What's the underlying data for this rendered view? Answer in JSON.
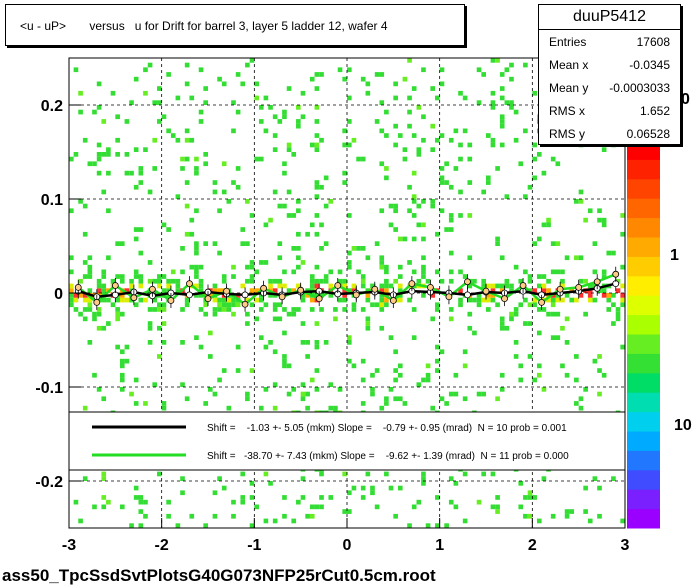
{
  "title": "<u - uP>       versus   u for Drift for barrel 3, layer 5 ladder 12, wafer 4",
  "stats": {
    "name": "duuP5412",
    "rows": [
      {
        "label": "Entries",
        "value": "17608"
      },
      {
        "label": "Mean x",
        "value": "-0.0345"
      },
      {
        "label": "Mean y",
        "value": "-0.0003033"
      },
      {
        "label": "RMS x",
        "value": "1.652"
      },
      {
        "label": "RMS y",
        "value": "0.06528"
      }
    ]
  },
  "legend": {
    "entries": [
      {
        "text": "Shift =    -1.03 +- 5.05 (mkm) Slope =    -0.79 +- 0.95 (mrad)  N = 10 prob = 0.001",
        "color": "#000000"
      },
      {
        "text": "Shift =   -38.70 +- 7.43 (mkm) Slope =    -9.62 +- 1.39 (mrad)  N = 11 prob = 0.000",
        "color": "#22dd22"
      }
    ]
  },
  "footer": "ass50_TpcSsdSvtPlotsG40G073NFP25rCut0.5cm.root",
  "chart_data": {
    "type": "heatmap",
    "title": "<u - uP>       versus   u for Drift for barrel 3, layer 5 ladder 12, wafer 4",
    "xlim": [
      -3,
      3
    ],
    "ylim": [
      -0.25,
      0.25
    ],
    "xticks": [
      "-3",
      "-2",
      "-1",
      "0",
      "1",
      "2",
      "3"
    ],
    "yticks": [
      "-0.2",
      "-0.1",
      "0",
      "0.1",
      "0.2"
    ],
    "grid": true,
    "colorbar": {
      "scale": "log",
      "labels": [
        "1",
        "10"
      ],
      "partial_label": "0"
    },
    "series": [
      {
        "x": [
          -2.9,
          -2.7,
          -2.5,
          -2.3,
          -2.1,
          -1.9,
          -1.7,
          -1.5,
          -1.3,
          -1.1,
          -0.9,
          -0.7,
          -0.5,
          -0.3,
          -0.1,
          0.1,
          0.3,
          0.5,
          0.7,
          0.9,
          1.1,
          1.3,
          1.5,
          1.7,
          1.9,
          2.1,
          2.3,
          2.5,
          2.7,
          2.9
        ],
        "y": [
          0.002,
          -0.004,
          -0.002,
          0.001,
          -0.003,
          0.0,
          -0.002,
          0.001,
          -0.001,
          -0.002,
          0.0,
          -0.002,
          0.001,
          0.002,
          -0.001,
          0.0,
          0.001,
          -0.002,
          0.002,
          0.001,
          0.0,
          -0.002,
          0.001,
          0.0,
          0.002,
          -0.002,
          0.0,
          0.002,
          0.005,
          0.01
        ],
        "color": "#000000"
      },
      {
        "x": [
          -2.9,
          -2.7,
          -2.5,
          -2.3,
          -2.1,
          -1.9,
          -1.7,
          -1.5,
          -1.3,
          -1.1,
          -0.9,
          -0.7,
          -0.5,
          -0.3,
          -0.1,
          0.1,
          0.3,
          0.5,
          0.7,
          0.9,
          1.1,
          1.3,
          1.5,
          1.7,
          1.9,
          2.1,
          2.3,
          2.5,
          2.7,
          2.9
        ],
        "y": [
          0.006,
          -0.01,
          0.008,
          -0.005,
          0.004,
          -0.008,
          0.01,
          -0.006,
          0.002,
          -0.012,
          0.005,
          -0.004,
          0.003,
          -0.006,
          0.008,
          -0.002,
          0.004,
          -0.008,
          0.01,
          0.006,
          -0.004,
          0.012,
          0.002,
          -0.006,
          0.008,
          -0.01,
          0.004,
          0.006,
          0.012,
          0.02
        ],
        "color": "#22dd22"
      }
    ]
  }
}
